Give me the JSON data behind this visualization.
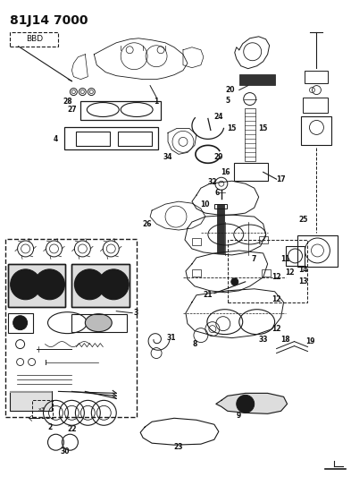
{
  "title": "81J14 7000",
  "bg_color": "#ffffff",
  "figsize": [
    3.93,
    5.33
  ],
  "dpi": 100,
  "title_fontsize": 10,
  "label_fontsize": 5.5,
  "line_color": "#1a1a1a",
  "text_color": "#111111"
}
